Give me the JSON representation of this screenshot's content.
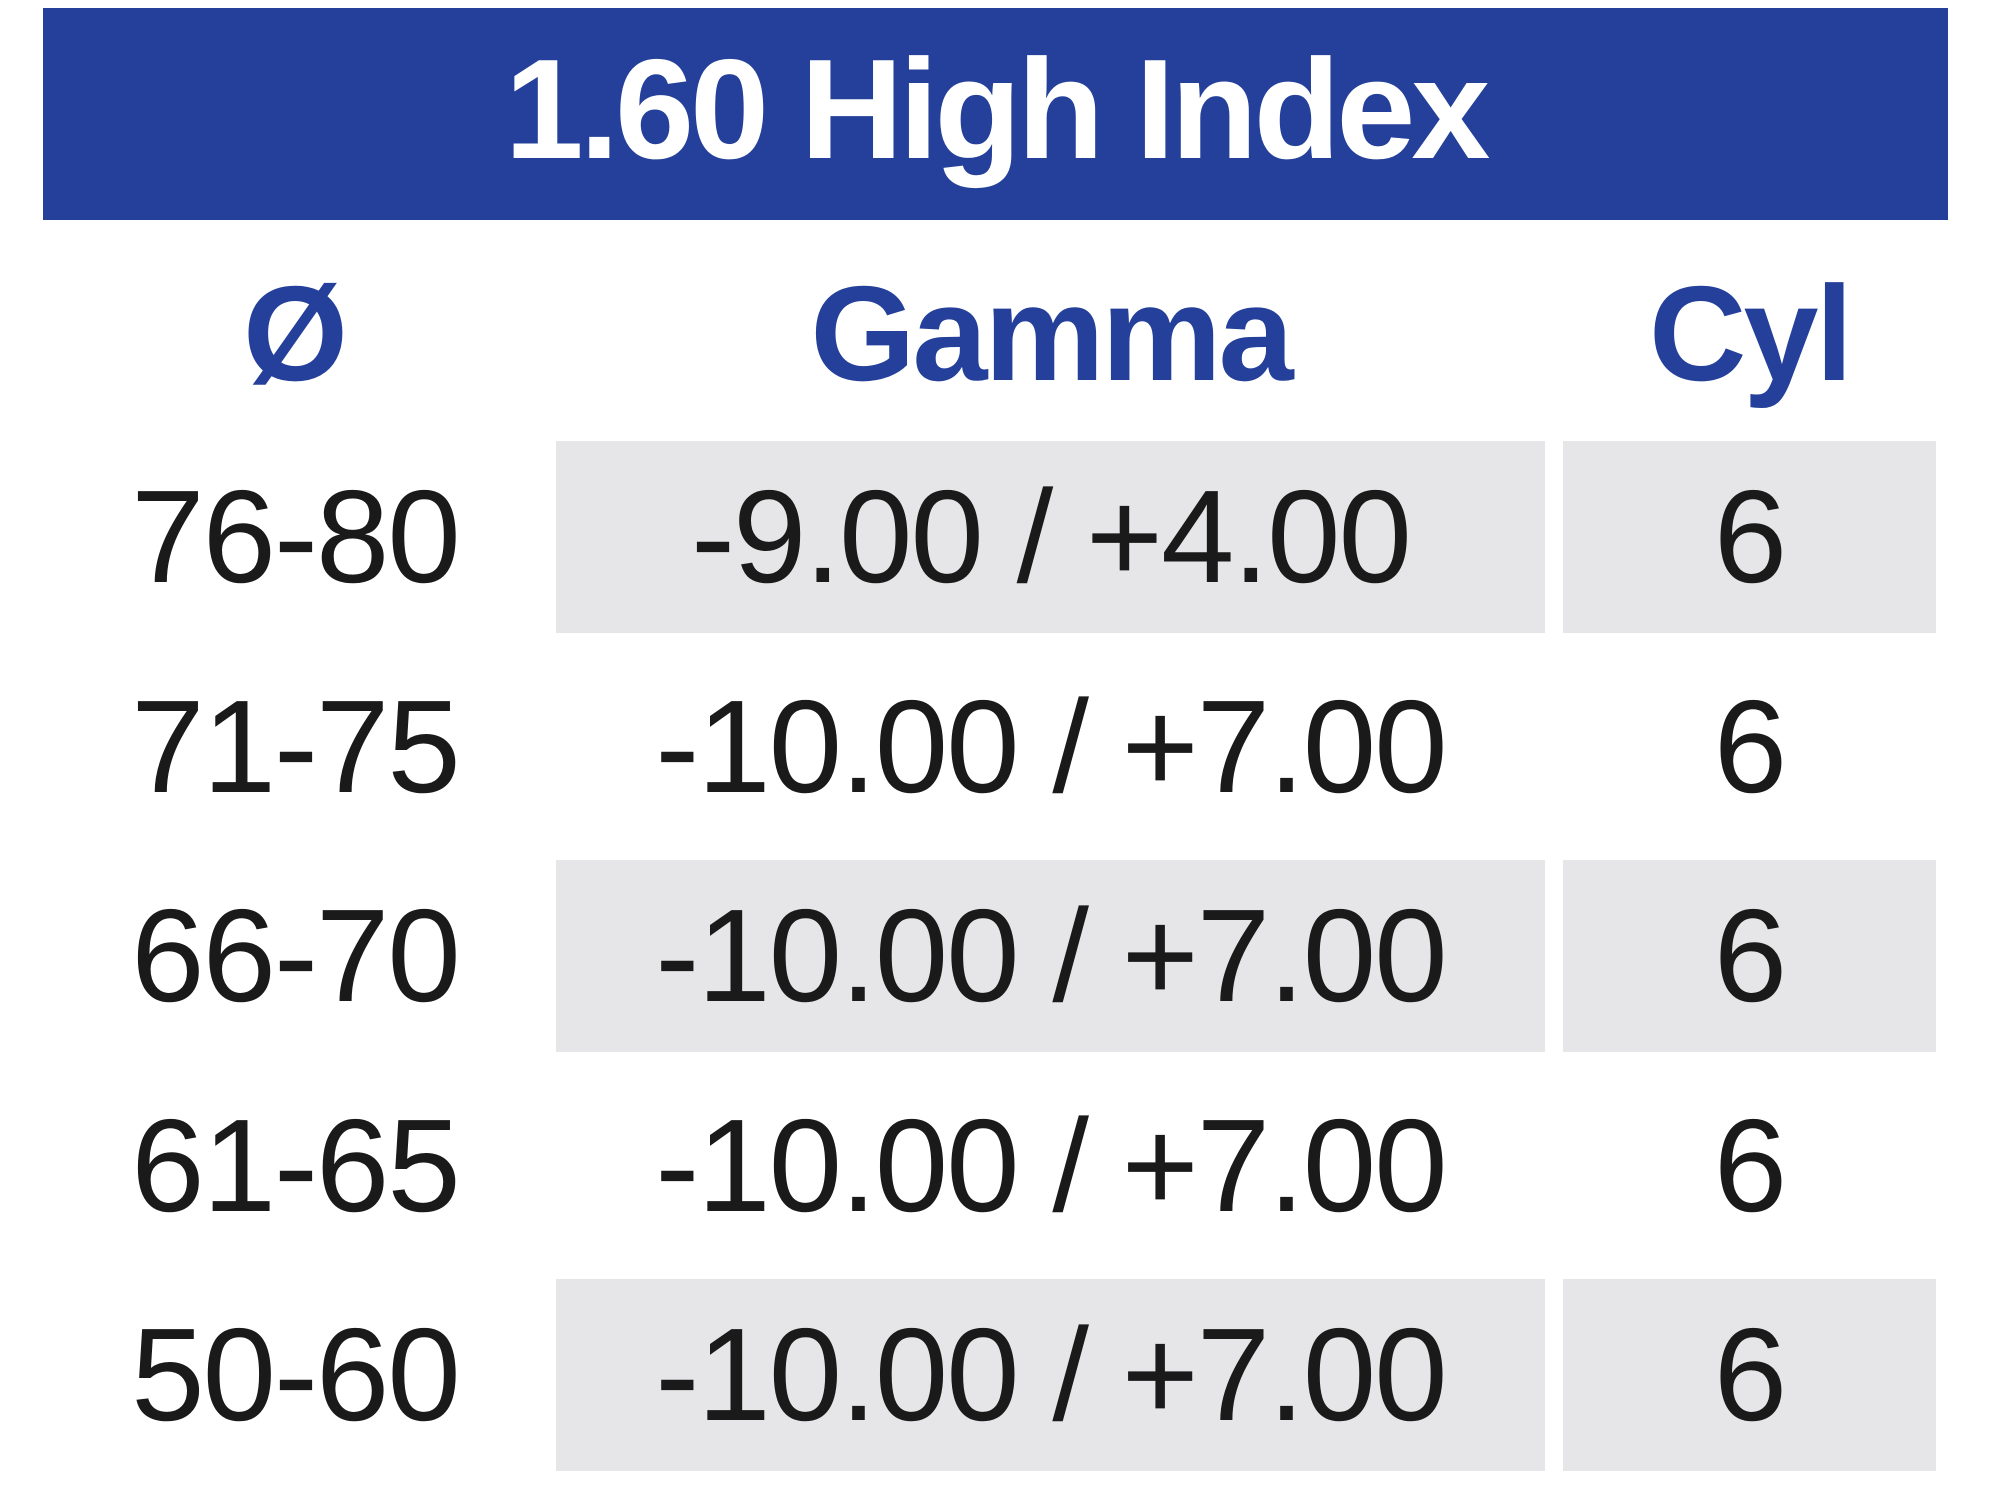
{
  "colors": {
    "banner_blue": "#24409A",
    "header_text_blue": "#24409A",
    "row_shade_gray": "#E6E6E8",
    "data_text": "#1A1A1A"
  },
  "banner": {
    "title": "1.60 High Index"
  },
  "table": {
    "columns": [
      {
        "key": "diameter",
        "label": "Ø"
      },
      {
        "key": "gamma",
        "label": "Gamma"
      },
      {
        "key": "cyl",
        "label": "Cyl"
      }
    ],
    "rows": [
      {
        "diameter": "76-80",
        "gamma": "-9.00 / +4.00",
        "cyl": "6",
        "shaded": true
      },
      {
        "diameter": "71-75",
        "gamma": "-10.00 / +7.00",
        "cyl": "6",
        "shaded": false
      },
      {
        "diameter": "66-70",
        "gamma": "-10.00 / +7.00",
        "cyl": "6",
        "shaded": true
      },
      {
        "diameter": "61-65",
        "gamma": "-10.00 / +7.00",
        "cyl": "6",
        "shaded": false
      },
      {
        "diameter": "50-60",
        "gamma": "-10.00 / +7.00",
        "cyl": "6",
        "shaded": true
      }
    ]
  }
}
